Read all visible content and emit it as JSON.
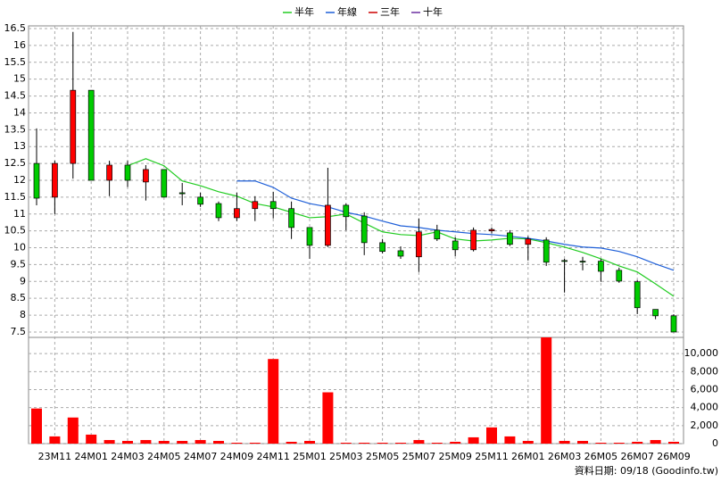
{
  "chart_data": [
    {
      "type": "candlestick",
      "categories": [
        null,
        "23M11",
        null,
        "24M01",
        null,
        "24M03",
        null,
        "24M05",
        null,
        "24M07",
        null,
        "24M09",
        null,
        "24M11",
        null,
        "25M01",
        null,
        "25M03",
        null,
        "25M05",
        null,
        "25M07",
        null,
        "25M09",
        null,
        "25M11",
        null,
        "26M01",
        null,
        "26M03",
        null,
        "26M05",
        null,
        "26M07",
        null,
        "26M09"
      ],
      "open": [
        12.5,
        11.5,
        12.5,
        14.67,
        12.0,
        12.45,
        11.95,
        12.32,
        11.63,
        11.5,
        11.31,
        10.89,
        11.16,
        11.37,
        11.16,
        10.6,
        10.07,
        11.26,
        10.94,
        10.15,
        9.91,
        9.73,
        10.52,
        10.2,
        9.94,
        10.5,
        10.44,
        10.1,
        10.23,
        9.62,
        9.6,
        9.6,
        9.33,
        8.99,
        8.17,
        7.98
      ],
      "high": [
        13.54,
        12.58,
        16.4,
        14.67,
        12.58,
        12.58,
        12.45,
        12.32,
        11.92,
        11.63,
        11.37,
        11.63,
        11.53,
        11.66,
        11.37,
        10.6,
        12.37,
        11.31,
        11.05,
        10.26,
        10.04,
        10.87,
        10.68,
        10.31,
        10.6,
        10.6,
        10.52,
        10.34,
        10.31,
        9.67,
        9.73,
        9.67,
        9.41,
        9.04,
        8.17,
        8.03
      ],
      "low": [
        11.26,
        11.0,
        12.05,
        12.0,
        11.53,
        11.8,
        11.4,
        11.5,
        11.26,
        11.21,
        10.79,
        10.79,
        10.79,
        10.87,
        10.26,
        9.67,
        10.02,
        10.52,
        9.78,
        9.83,
        9.67,
        9.28,
        10.2,
        9.75,
        9.89,
        10.42,
        10.05,
        9.62,
        9.46,
        8.67,
        9.33,
        8.99,
        8.96,
        8.03,
        7.88,
        7.5
      ],
      "close": [
        11.47,
        12.5,
        14.67,
        12.0,
        12.45,
        12.0,
        12.32,
        11.5,
        11.6,
        11.29,
        10.89,
        11.16,
        11.37,
        11.16,
        10.6,
        10.07,
        11.26,
        10.92,
        10.15,
        9.89,
        9.75,
        10.47,
        10.26,
        9.94,
        10.52,
        10.54,
        10.1,
        10.26,
        9.57,
        9.6,
        9.58,
        9.3,
        9.01,
        8.22,
        7.98,
        7.5
      ],
      "up_color": "#ff0000",
      "down_color": "#00cc00",
      "series": [
        {
          "name": "半年",
          "color": "#22cc22",
          "values": [
            null,
            null,
            null,
            null,
            null,
            12.43,
            12.64,
            12.43,
            11.98,
            11.84,
            11.66,
            11.53,
            11.31,
            11.21,
            11.05,
            10.89,
            10.92,
            11.0,
            10.73,
            10.47,
            10.39,
            10.36,
            10.47,
            10.26,
            10.2,
            10.23,
            10.28,
            10.26,
            10.15,
            10.02,
            9.86,
            9.67,
            9.46,
            9.28,
            8.93,
            8.56
          ]
        },
        {
          "name": "年線",
          "color": "#1e5fd8",
          "values": [
            null,
            null,
            null,
            null,
            null,
            null,
            null,
            null,
            null,
            null,
            null,
            11.98,
            11.98,
            11.79,
            11.47,
            11.31,
            11.21,
            11.05,
            10.94,
            10.79,
            10.65,
            10.6,
            10.52,
            10.47,
            10.42,
            10.39,
            10.34,
            10.28,
            10.2,
            10.1,
            10.02,
            9.99,
            9.89,
            9.73,
            9.52,
            9.33
          ]
        },
        {
          "name": "三年",
          "color": "#cc0000",
          "values": [
            null,
            null,
            null,
            null,
            null,
            null,
            null,
            null,
            null,
            null,
            null,
            null,
            null,
            null,
            null,
            null,
            null,
            null,
            null,
            null,
            null,
            null,
            null,
            null,
            null,
            null,
            null,
            null,
            null,
            null,
            null,
            null,
            null,
            null,
            null,
            null
          ]
        },
        {
          "name": "十年",
          "color": "#6a2fa0",
          "values": [
            null,
            null,
            null,
            null,
            null,
            null,
            null,
            null,
            null,
            null,
            null,
            null,
            null,
            null,
            null,
            null,
            null,
            null,
            null,
            null,
            null,
            null,
            null,
            null,
            null,
            null,
            null,
            null,
            null,
            null,
            null,
            null,
            null,
            null,
            null,
            null
          ]
        }
      ],
      "ylim": [
        7.34,
        16.58
      ],
      "yticks": [
        7.5,
        8,
        8.5,
        9,
        9.5,
        10,
        10.5,
        11,
        11.5,
        12,
        12.5,
        13,
        13.5,
        14,
        14.5,
        15,
        15.5,
        16,
        16.5
      ],
      "grid": true
    },
    {
      "type": "bar",
      "values": [
        3900,
        800,
        2900,
        1000,
        400,
        300,
        400,
        300,
        300,
        400,
        300,
        100,
        100,
        9400,
        200,
        300,
        5700,
        100,
        100,
        100,
        100,
        400,
        100,
        200,
        700,
        1800,
        800,
        300,
        11800,
        300,
        300,
        100,
        100,
        200,
        400,
        200
      ],
      "color": "#ff0000",
      "ylim": [
        0,
        11800
      ],
      "yticks": [
        0,
        {
          "value": 2000,
          "label": "2,000"
        },
        {
          "value": 4000,
          "label": "4,000"
        },
        {
          "value": 6000,
          "label": "6,000"
        },
        {
          "value": 8000,
          "label": "8,000"
        },
        {
          "value": 10000,
          "label": "10,000"
        }
      ],
      "grid": true,
      "footer": "資料日期: 09/18 (Goodinfo.tw)"
    }
  ]
}
